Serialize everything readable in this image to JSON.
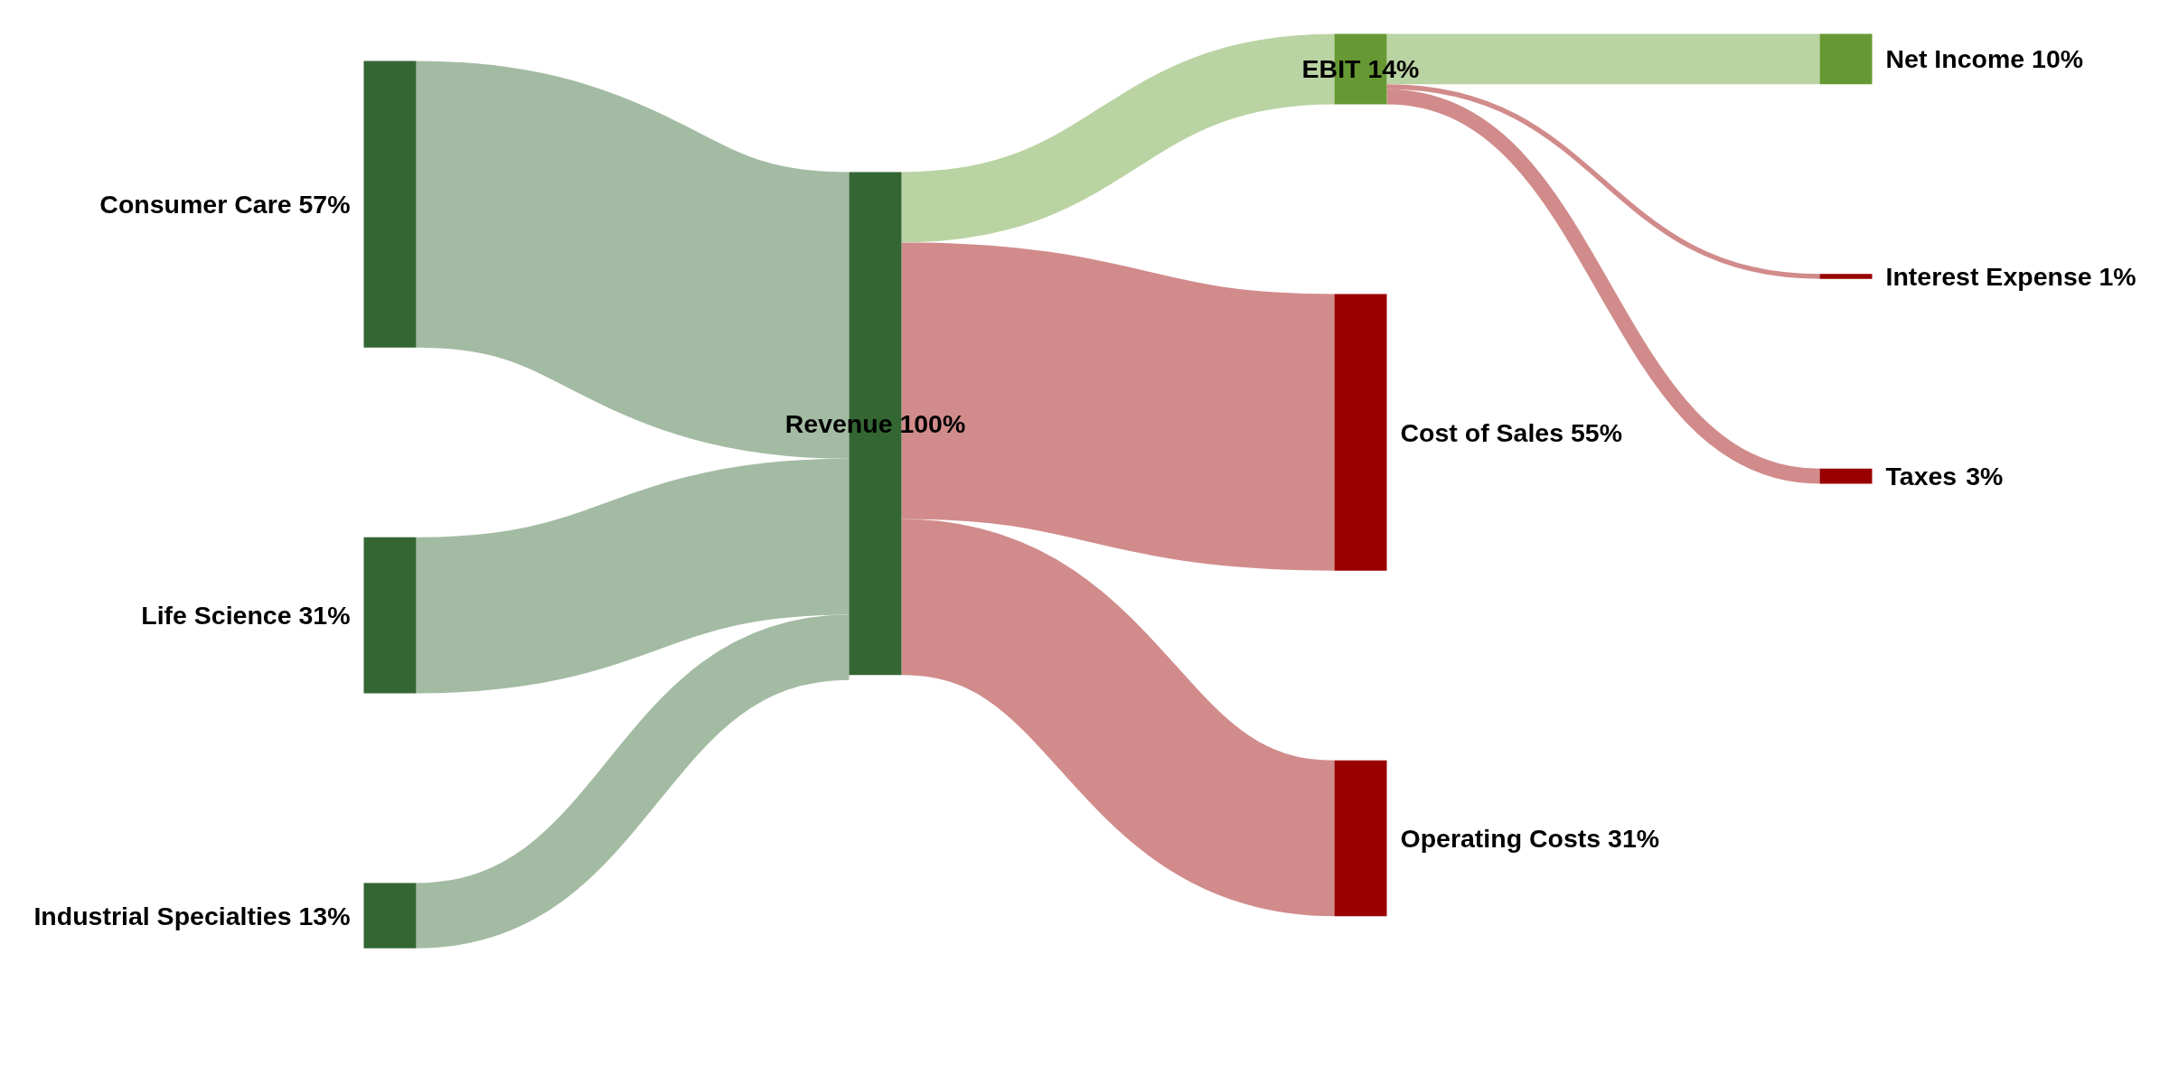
{
  "chart_data": {
    "type": "other",
    "categories": [
      "Consumer Care",
      "Life Science",
      "Industrial Specialties",
      "Revenue",
      "EBIT",
      "Cost of Sales",
      "Operating Costs",
      "Net Income",
      "Interest Expense",
      "Taxes"
    ],
    "colors": [
      "#336633",
      "#336633",
      "#336633",
      "#336633",
      "#669933",
      "#990000",
      "#990000",
      "#669933",
      "#990000",
      "#990000"
    ],
    "series": [
      {
        "values": [
          57,
          31,
          13,
          100,
          null,
          55,
          31,
          null,
          null,
          null
        ],
        "value_labels": [
          "57%",
          "31%",
          "13%",
          "100%",
          null,
          "55%",
          "31%",
          null,
          null,
          null
        ],
        "colors": [
          "#a3bba3",
          "#a3bba3",
          "#a3bba3",
          null,
          null,
          "#d18b8b",
          "#d18b8b",
          null,
          null,
          null
        ]
      },
      {
        "values": [
          null,
          null,
          null,
          null,
          14,
          null,
          null,
          10,
          1,
          3
        ],
        "value_labels": [
          null,
          null,
          null,
          null,
          "14%",
          null,
          null,
          "10%",
          "1%",
          "3%"
        ],
        "colors": [
          null,
          null,
          null,
          null,
          "#bad3a3",
          null,
          null,
          "#bad3a3",
          "#d18b8b",
          "#d18b8b"
        ]
      }
    ]
  }
}
